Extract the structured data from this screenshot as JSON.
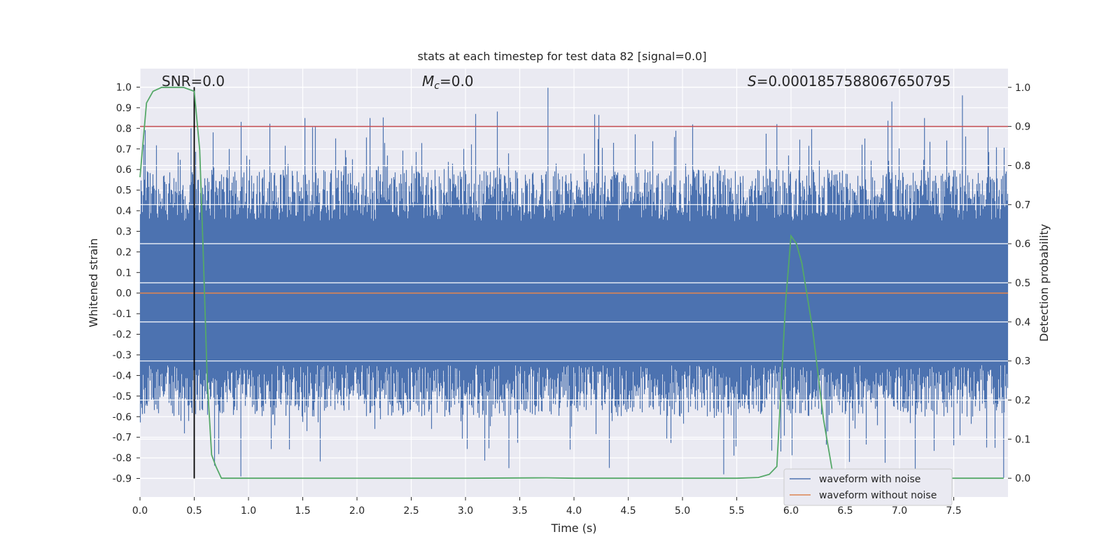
{
  "chart_data": {
    "type": "line",
    "title": "stats at each timestep for test data 82 [signal=0.0]",
    "xlabel": "Time (s)",
    "ylabel_left": "Whitened strain",
    "ylabel_right": "Detection probability",
    "xlim": [
      0.0,
      8.0
    ],
    "ylim_left": [
      -0.99,
      1.09
    ],
    "ylim_right": [
      -0.048,
      1.048
    ],
    "x_ticks": [
      "0.0",
      "0.5",
      "1.0",
      "1.5",
      "2.0",
      "2.5",
      "3.0",
      "3.5",
      "4.0",
      "4.5",
      "5.0",
      "5.5",
      "6.0",
      "6.5",
      "7.0",
      "7.5"
    ],
    "y_left_ticks": [
      "1.0",
      "0.9",
      "0.8",
      "0.7",
      "0.6",
      "0.5",
      "0.4",
      "0.3",
      "0.2",
      "0.1",
      "0.0",
      "-0.1",
      "-0.2",
      "-0.3",
      "-0.4",
      "-0.5",
      "-0.6",
      "-0.7",
      "-0.8",
      "-0.9"
    ],
    "y_right_ticks": [
      "1.0",
      "0.9",
      "0.8",
      "0.7",
      "0.6",
      "0.5",
      "0.4",
      "0.3",
      "0.2",
      "0.1",
      "0.0"
    ],
    "annotations": {
      "snr": "SNR=0.0",
      "mc_symbol": "M",
      "mc_sub": "c",
      "mc_value": "=0.0",
      "s_symbol": "S",
      "s_value": "=0.0001857588067650795"
    },
    "series": [
      {
        "name": "waveform with noise",
        "color": "#4c72b0",
        "axis": "left",
        "x_range": [
          0.0,
          8.0
        ],
        "envelope_typical": [
          -0.45,
          0.45
        ],
        "peaks": [
          [
            0.47,
            0.8
          ],
          [
            1.52,
            0.85
          ],
          [
            2.12,
            0.85
          ],
          [
            3.76,
            1.0
          ],
          [
            5.87,
            0.82
          ],
          [
            7.23,
            0.85
          ],
          [
            7.58,
            0.96
          ],
          [
            6.93,
            0.93
          ],
          [
            0.93,
            -0.89
          ],
          [
            3.4,
            -0.85
          ],
          [
            5.38,
            -0.88
          ],
          [
            7.96,
            -0.9
          ]
        ]
      },
      {
        "name": "waveform without noise",
        "color": "#dd8452",
        "axis": "left",
        "x": [
          0.0,
          8.0
        ],
        "y": [
          0.0,
          0.0
        ]
      },
      {
        "name": "",
        "color": "#55a868",
        "axis": "right",
        "x": [
          0.0,
          0.06,
          0.12,
          0.2,
          0.3,
          0.4,
          0.5,
          0.55,
          0.58,
          0.62,
          0.66,
          0.7,
          0.75,
          0.8,
          1.0,
          2.0,
          3.0,
          3.75,
          4.0,
          5.0,
          5.5,
          5.7,
          5.8,
          5.87,
          5.95,
          6.0,
          6.05,
          6.1,
          6.2,
          6.3,
          6.38,
          6.45,
          7.96
        ],
        "y": [
          0.77,
          0.96,
          0.99,
          1.0,
          1.0,
          1.0,
          0.99,
          0.84,
          0.6,
          0.25,
          0.06,
          0.03,
          0.0,
          0.0,
          0.0,
          0.0,
          0.0,
          0.001,
          0.0,
          0.0,
          0.0,
          0.002,
          0.01,
          0.03,
          0.45,
          0.62,
          0.6,
          0.55,
          0.38,
          0.15,
          0.02,
          0.0,
          0.0
        ]
      }
    ],
    "threshold_line": {
      "color": "#c44e52",
      "axis": "right",
      "y": 0.9
    },
    "marker_line": {
      "color": "#000000",
      "axis": "left",
      "x": 0.5,
      "y_range": [
        -0.9,
        1.0
      ]
    },
    "grid": true,
    "legend_placement": "lower-right",
    "colors": {
      "plot_bg": "#eaeaf2",
      "grid": "#ffffff"
    }
  }
}
